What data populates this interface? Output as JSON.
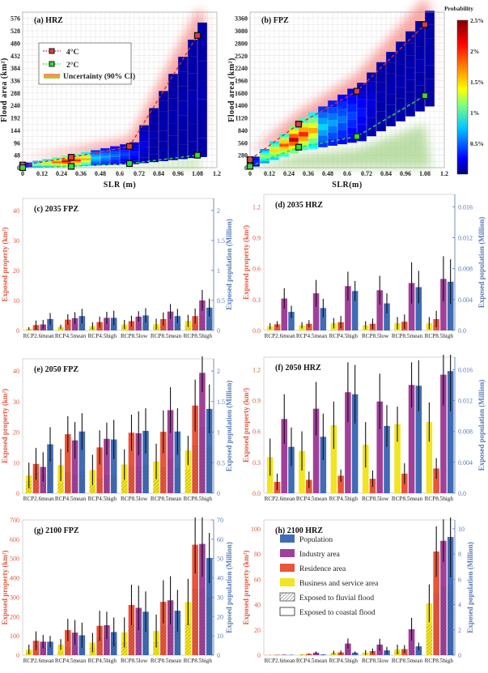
{
  "colors": {
    "business": "#f2e41e",
    "residence": "#e8553a",
    "industry": "#a0409a",
    "population": "#3f6cb5",
    "left_axis": "#e05a40",
    "right_axis": "#5a7ab5",
    "rcp45_4C": "#d9302a",
    "rcp_2C": "#29e02a"
  },
  "chart_data": [
    {
      "id": "a",
      "type": "heatmap",
      "title": "(a) HRZ",
      "xlabel": "SLR (m)",
      "ylabel": "Flood area (km²)",
      "xticks": [
        "0",
        "0.12",
        "0.24",
        "0.36",
        "0.48",
        "0.6",
        "0.72",
        "0.84",
        "0.96",
        "1.08",
        "1.2"
      ],
      "yticks": [
        "0",
        "48",
        "96",
        "144",
        "192",
        "240",
        "288",
        "336",
        "384",
        "432",
        "480",
        "528",
        "576"
      ],
      "xlim": [
        0,
        1.2
      ],
      "ylim": [
        0,
        600
      ],
      "markers_4C": [
        [
          0,
          10
        ],
        [
          0.3,
          40
        ],
        [
          0.66,
          82
        ],
        [
          1.08,
          510
        ]
      ],
      "markers_2C": [
        [
          0,
          0
        ],
        [
          0.3,
          5
        ],
        [
          0.66,
          16
        ],
        [
          1.08,
          48
        ]
      ],
      "legend": [
        {
          "label": "4°C",
          "kind": "4C"
        },
        {
          "label": "2°C",
          "kind": "2C"
        },
        {
          "label": "Uncertainty (90% CI)",
          "kind": "ci"
        }
      ]
    },
    {
      "id": "b",
      "type": "heatmap",
      "title": "(b) FPZ",
      "xlabel": "SLR(m)",
      "ylabel": "Flood area (km²)",
      "xticks": [
        "0",
        "0.12",
        "0.24",
        "0.36",
        "0.48",
        "0.6",
        "0.72",
        "0.84",
        "0.96",
        "1.08",
        "1.2"
      ],
      "yticks": [
        "0",
        "280",
        "560",
        "840",
        "1120",
        "1400",
        "1680",
        "1960",
        "2240",
        "2520",
        "2800",
        "3080",
        "3360"
      ],
      "xlim": [
        0,
        1.2
      ],
      "ylim": [
        0,
        3500
      ],
      "markers_4C": [
        [
          0,
          180
        ],
        [
          0.3,
          980
        ],
        [
          0.66,
          1720
        ],
        [
          1.08,
          3220
        ]
      ],
      "markers_2C": [
        [
          0,
          30
        ],
        [
          0.3,
          460
        ],
        [
          0.66,
          700
        ],
        [
          1.08,
          1620
        ]
      ],
      "colorbar": {
        "title": "Probability",
        "ticks": [
          "0.5%",
          "1%",
          "1.5%",
          "2%",
          "2.5%"
        ],
        "range": [
          0,
          2.5
        ]
      }
    },
    {
      "id": "c",
      "type": "bar",
      "title": "(c) 2035 FPZ",
      "categories": [
        "RCP2.6mean",
        "RCP4.5mean",
        "RCP4.5high",
        "RCP8.5low",
        "RCP8.5mean",
        "RCP8.5high"
      ],
      "ylabel": "Exposed  property (km²)",
      "y2label": "Exposed population (Million)",
      "ylim": [
        0,
        44
      ],
      "yticks": [
        "0",
        "10",
        "20",
        "30",
        "40"
      ],
      "y2lim": [
        0,
        2.2
      ],
      "y2ticks": [
        "0",
        "0.5",
        "1",
        "1.5",
        "2"
      ],
      "series": [
        {
          "name": "Business and service area",
          "values": [
            0.6,
            1.2,
            1.5,
            2.0,
            2.1,
            3.2
          ],
          "err": [
            0.5,
            0.7,
            1.2,
            1.5,
            1.8,
            2.0
          ]
        },
        {
          "name": "Residence area",
          "values": [
            1.8,
            3.6,
            2.8,
            3.1,
            3.8,
            4.8
          ],
          "err": [
            1.5,
            1.8,
            1.8,
            1.8,
            2.2,
            2.5
          ]
        },
        {
          "name": "Industry area",
          "values": [
            2.0,
            4.1,
            4.2,
            4.6,
            6.3,
            10.0
          ],
          "err": [
            1.5,
            2.0,
            2.0,
            1.8,
            2.5,
            3.5
          ]
        },
        {
          "name": "Population",
          "values": [
            0.19,
            0.24,
            0.21,
            0.25,
            0.24,
            0.38
          ],
          "err": [
            0.1,
            0.12,
            0.12,
            0.12,
            0.12,
            0.15
          ]
        }
      ],
      "fluvial_share": [
        0.5,
        0.5,
        0.5,
        0.5,
        0.5,
        0.5
      ]
    },
    {
      "id": "d",
      "type": "bar",
      "title": "(d) 2035 HRZ",
      "categories": [
        "RCP2.6mean",
        "RCP4.5mean",
        "RCP4.5high",
        "RCP8.5low",
        "RCP8.5mean",
        "RCP8.5high"
      ],
      "ylabel": "Exposed  property (km²)",
      "y2label": "Exposed population (Million)",
      "ylim": [
        0,
        1.32
      ],
      "yticks": [
        "0.0",
        "0.3",
        "0.6",
        "0.9",
        "1.2"
      ],
      "y2lim": [
        0,
        0.0176
      ],
      "y2ticks": [
        "0.0",
        "0.004",
        "0.008",
        "0.012",
        "0.016"
      ],
      "series": [
        {
          "name": "Business and service area",
          "values": [
            0.04,
            0.05,
            0.07,
            0.05,
            0.07,
            0.07
          ],
          "err": [
            0.03,
            0.03,
            0.05,
            0.04,
            0.06,
            0.06
          ]
        },
        {
          "name": "Residence area",
          "values": [
            0.06,
            0.065,
            0.08,
            0.065,
            0.085,
            0.11
          ],
          "err": [
            0.03,
            0.035,
            0.06,
            0.05,
            0.07,
            0.08
          ]
        },
        {
          "name": "Industry area",
          "values": [
            0.31,
            0.36,
            0.43,
            0.39,
            0.46,
            0.5
          ],
          "err": [
            0.1,
            0.13,
            0.14,
            0.14,
            0.2,
            0.22
          ]
        },
        {
          "name": "Population",
          "values": [
            0.0024,
            0.0029,
            0.0051,
            0.0035,
            0.0056,
            0.0063
          ],
          "err": [
            0.0008,
            0.0012,
            0.0013,
            0.0013,
            0.0021,
            0.0029
          ]
        }
      ]
    },
    {
      "id": "e",
      "type": "bar",
      "title": "(e) 2050 FPZ",
      "categories": [
        "RCP2.6mean",
        "RCP4.5mean",
        "RCP4.5high",
        "RCP8.5low",
        "RCP8.5mean",
        "RCP8.5high"
      ],
      "ylabel": "Exposed  property (km²)",
      "y2label": "Exposed population (Million)",
      "ylim": [
        0,
        44
      ],
      "yticks": [
        "0",
        "10",
        "20",
        "30",
        "40"
      ],
      "y2lim": [
        0,
        2.2
      ],
      "y2ticks": [
        "0",
        "0.5",
        "1",
        "1.5",
        "2"
      ],
      "series": [
        {
          "name": "Business and service area",
          "values": [
            5.8,
            9.2,
            7.6,
            9.4,
            10.4,
            14.0
          ],
          "err": [
            4.2,
            5.3,
            5.0,
            5.0,
            5.8,
            4.8
          ]
        },
        {
          "name": "Residence area",
          "values": [
            9.6,
            19.3,
            15.0,
            19.8,
            20.1,
            28.7
          ],
          "err": [
            5.2,
            5.9,
            5.6,
            5.9,
            7.0,
            8.5
          ]
        },
        {
          "name": "Industry area",
          "values": [
            8.6,
            17.3,
            17.8,
            19.6,
            27.2,
            39.4
          ],
          "err": [
            4.8,
            6.0,
            5.3,
            7.2,
            7.5,
            6.3
          ]
        },
        {
          "name": "Population",
          "values": [
            0.8,
            1.01,
            0.88,
            1.02,
            1.01,
            1.38
          ],
          "err": [
            0.28,
            0.3,
            0.32,
            0.37,
            0.38,
            0.4
          ]
        }
      ],
      "fluvial_share": [
        0.7,
        0.36,
        0.33,
        0.45,
        0.42,
        0.55
      ]
    },
    {
      "id": "f",
      "type": "bar",
      "title": "(f) 2050 HRZ",
      "categories": [
        "RCP2.6mean",
        "RCP4.5mean",
        "RCP4.5high",
        "RCP8.5low",
        "RCP8.5mean",
        "RCP8.5high"
      ],
      "ylabel": "Exposed  property (km²)",
      "y2label": "Exposed population (Million)",
      "ylim": [
        0,
        1.32
      ],
      "yticks": [
        "0.0",
        "0.3",
        "0.6",
        "0.9",
        "1.2"
      ],
      "y2lim": [
        0,
        0.0176
      ],
      "y2ticks": [
        "0.0",
        "0.004",
        "0.008",
        "0.012",
        "0.016"
      ],
      "series": [
        {
          "name": "Business and service area",
          "values": [
            0.35,
            0.41,
            0.66,
            0.47,
            0.67,
            0.69
          ],
          "err": [
            0.18,
            0.19,
            0.23,
            0.22,
            0.17,
            0.19
          ]
        },
        {
          "name": "Residence area",
          "values": [
            0.11,
            0.13,
            0.17,
            0.14,
            0.19,
            0.24
          ],
          "err": [
            0.08,
            0.08,
            0.06,
            0.08,
            0.1,
            0.1
          ]
        },
        {
          "name": "Industry area",
          "values": [
            0.72,
            0.82,
            0.98,
            0.89,
            1.05,
            1.15
          ],
          "err": [
            0.24,
            0.26,
            0.29,
            0.27,
            0.22,
            0.3
          ]
        },
        {
          "name": "Population",
          "values": [
            0.006,
            0.0073,
            0.0128,
            0.0087,
            0.0139,
            0.0158
          ],
          "err": [
            0.0025,
            0.003,
            0.0038,
            0.0027,
            0.0033,
            0.0052
          ]
        }
      ]
    },
    {
      "id": "g",
      "type": "bar",
      "title": "(g) 2100 FPZ",
      "categories": [
        "RCP2.6mean",
        "RCP4.5mean",
        "RCP4.5high",
        "RCP8.5low",
        "RCP8.5mean",
        "RCP8.5high"
      ],
      "ylabel": "Exposed  property (km²)",
      "y2label": "Exposed population (Million)",
      "ylim": [
        0,
        700
      ],
      "yticks": [
        "0",
        "100",
        "200",
        "300",
        "400",
        "500",
        "600",
        "700"
      ],
      "y2lim": [
        0,
        70
      ],
      "y2ticks": [
        "0",
        "10",
        "20",
        "30",
        "40",
        "50",
        "60",
        "70"
      ],
      "series": [
        {
          "name": "Business and service area",
          "values": [
            30,
            55,
            65,
            118,
            125,
            275
          ],
          "err": [
            25,
            28,
            50,
            78,
            85,
            120
          ]
        },
        {
          "name": "Residence area",
          "values": [
            75,
            130,
            152,
            260,
            276,
            572
          ],
          "err": [
            48,
            58,
            78,
            105,
            112,
            150
          ]
        },
        {
          "name": "Industry area",
          "values": [
            70,
            117,
            155,
            245,
            284,
            576
          ],
          "err": [
            35,
            65,
            70,
            115,
            125,
            170
          ]
        },
        {
          "name": "Population",
          "values": [
            7,
            10.3,
            12,
            22.5,
            23,
            50.3
          ],
          "err": [
            3,
            6.5,
            7.5,
            10.5,
            10.8,
            13
          ]
        }
      ],
      "fluvial_share": [
        0.65,
        0.35,
        0.6,
        0.6,
        0.55,
        0.6
      ]
    },
    {
      "id": "h",
      "type": "bar",
      "title": "(h) 2100 HRZ",
      "categories": [
        "RCP2.6mean",
        "RCP4.5mean",
        "RCP4.5high",
        "RCP8.5low",
        "RCP8.5mean",
        "RCP8.5high"
      ],
      "ylabel": "Exposed  property (km²)",
      "y2label": "Exposed population (Million)",
      "ylim": [
        0,
        107
      ],
      "yticks": [
        "0",
        "20",
        "40",
        "60",
        "80",
        "100"
      ],
      "y2lim": [
        0,
        10.7
      ],
      "y2ticks": [
        "0",
        "2",
        "4",
        "6",
        "8",
        "10"
      ],
      "series": [
        {
          "name": "Business and service area",
          "values": [
            0.2,
            0.5,
            2.0,
            2.1,
            4.5,
            41.0
          ],
          "err": [
            0.1,
            0.3,
            1.5,
            2.0,
            3.8,
            15.0
          ]
        },
        {
          "name": "Residence area",
          "values": [
            0.3,
            1.0,
            2.2,
            3.2,
            4.8,
            82.0
          ],
          "err": [
            0.1,
            0.5,
            1.5,
            2.0,
            3.2,
            20.0
          ]
        },
        {
          "name": "Industry area",
          "values": [
            0.3,
            2.0,
            9.2,
            8.4,
            20.5,
            90.5
          ],
          "err": [
            0.2,
            1.0,
            4.0,
            4.6,
            9.0,
            17.0
          ]
        },
        {
          "name": "Population",
          "values": [
            0.02,
            0.05,
            0.2,
            0.38,
            0.7,
            9.35
          ],
          "err": [
            0.02,
            0.03,
            0.1,
            0.28,
            0.3,
            3.2
          ]
        }
      ],
      "fluvial_share": [
        0.6,
        0.6,
        0.6,
        0.6,
        0.6,
        0.6
      ],
      "legend": [
        {
          "label": "Population",
          "kind": "population"
        },
        {
          "label": "Industry area",
          "kind": "industry"
        },
        {
          "label": "Residence area",
          "kind": "residence"
        },
        {
          "label": "Business and service area",
          "kind": "business"
        },
        {
          "label": "Exposed to fluvial flood",
          "kind": "hatch"
        },
        {
          "label": "Exposed to coastal flood",
          "kind": "empty"
        }
      ]
    }
  ]
}
